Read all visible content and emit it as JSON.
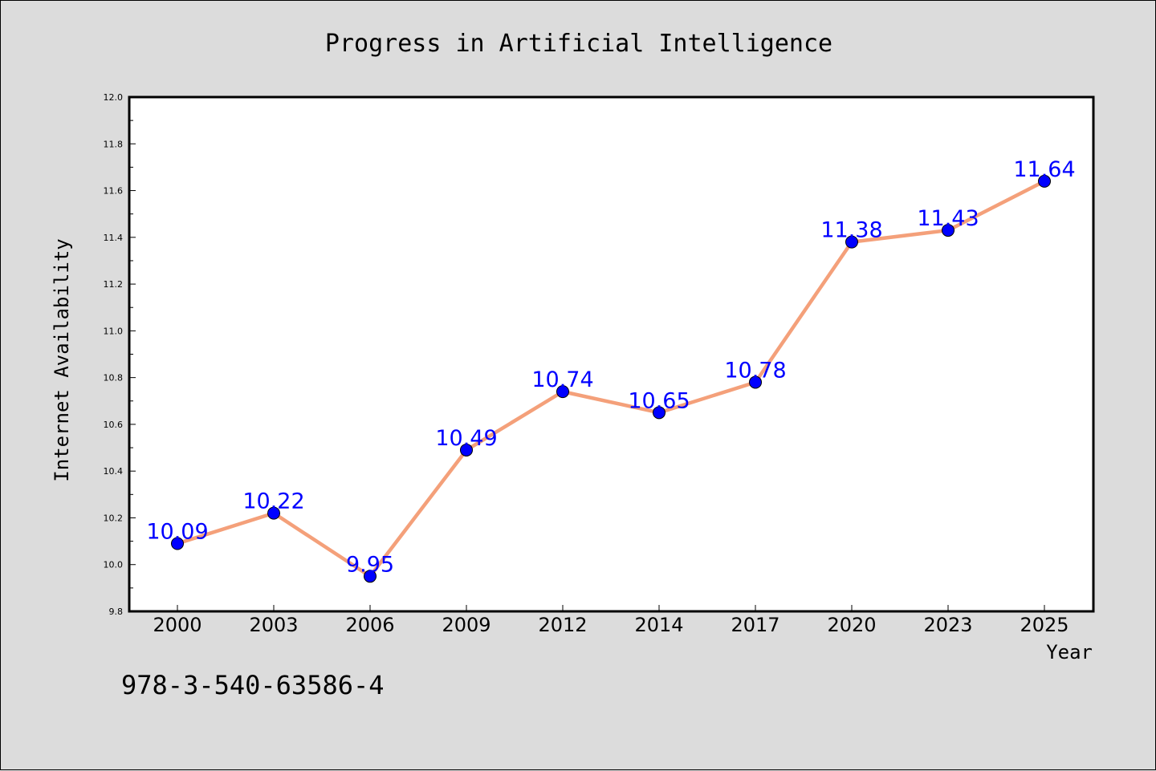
{
  "chart_data": {
    "type": "line",
    "title": "Progress in Artificial Intelligence",
    "xlabel": "Year",
    "ylabel": "Internet Availability",
    "categories": [
      "2000",
      "2003",
      "2006",
      "2009",
      "2012",
      "2014",
      "2017",
      "2020",
      "2023",
      "2025"
    ],
    "series": [
      {
        "values": [
          10.09,
          10.22,
          9.95,
          10.49,
          10.74,
          10.65,
          10.78,
          11.38,
          11.43,
          11.64
        ],
        "labels": [
          "10.09",
          "10.22",
          "9.95",
          "10.49",
          "10.74",
          "10.65",
          "10.78",
          "11.38",
          "11.43",
          "11.64"
        ],
        "line_color": "#f4a07a",
        "marker_color": "#0000ff"
      }
    ],
    "ylim": [
      9.8,
      12.0
    ],
    "yticks": [
      "9.8",
      "10.0",
      "10.2",
      "10.4",
      "10.6",
      "10.8",
      "11.0",
      "11.2",
      "11.4",
      "11.6",
      "11.8",
      "12.0"
    ],
    "grid": false,
    "legend": false
  },
  "annotation": "978-3-540-63586-4",
  "colors": {
    "background": "#dcdcdc",
    "plot_background": "#ffffff",
    "label": "#0000ff"
  }
}
